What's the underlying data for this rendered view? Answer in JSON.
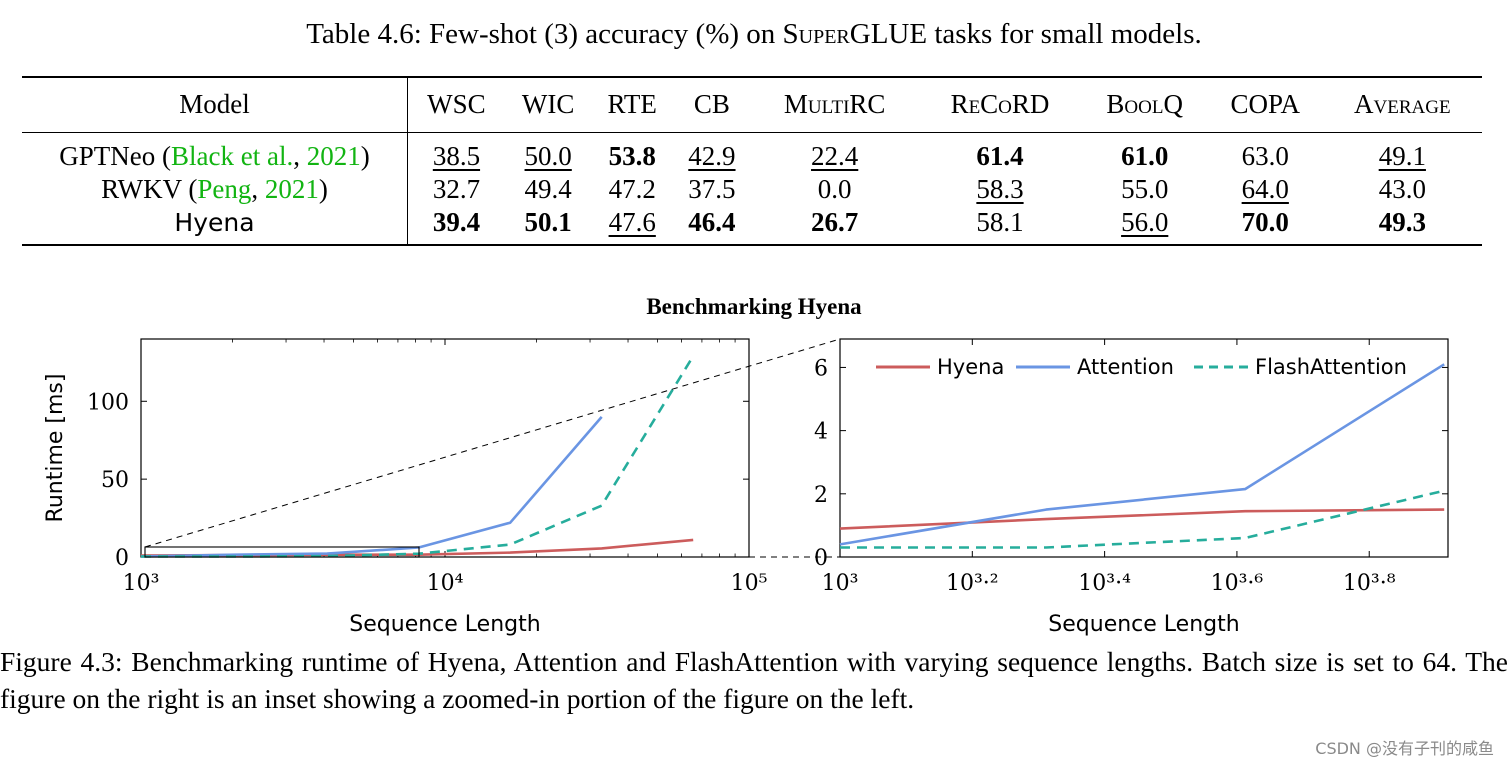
{
  "table": {
    "caption_prefix": "Table 4.6: Few-shot (3) accuracy (%) on ",
    "caption_sc": "SuperGLUE",
    "caption_suffix": " tasks for small models.",
    "headers": [
      "Model",
      "WSC",
      "WIC",
      "RTE",
      "CB",
      "MultiRC",
      "ReCoRD",
      "BoolQ",
      "COPA",
      "Average"
    ],
    "rows": [
      {
        "model": "GPTNeo",
        "cite_open": " (",
        "cite_author": "Black et al.",
        "cite_sep": ", ",
        "cite_year": "2021",
        "cite_close": ")",
        "cells": [
          {
            "v": "38.5",
            "s": "u"
          },
          {
            "v": "50.0",
            "s": "u"
          },
          {
            "v": "53.8",
            "s": "b"
          },
          {
            "v": "42.9",
            "s": "u"
          },
          {
            "v": "22.4",
            "s": "u"
          },
          {
            "v": "61.4",
            "s": "b"
          },
          {
            "v": "61.0",
            "s": "b"
          },
          {
            "v": "63.0",
            "s": ""
          },
          {
            "v": "49.1",
            "s": "u"
          }
        ]
      },
      {
        "model": "RWKV",
        "cite_open": " (",
        "cite_author": "Peng",
        "cite_sep": ", ",
        "cite_year": "2021",
        "cite_close": ")",
        "cells": [
          {
            "v": "32.7",
            "s": ""
          },
          {
            "v": "49.4",
            "s": ""
          },
          {
            "v": "47.2",
            "s": ""
          },
          {
            "v": "37.5",
            "s": ""
          },
          {
            "v": "0.0",
            "s": ""
          },
          {
            "v": "58.3",
            "s": "u"
          },
          {
            "v": "55.0",
            "s": ""
          },
          {
            "v": "64.0",
            "s": "u"
          },
          {
            "v": "43.0",
            "s": ""
          }
        ]
      },
      {
        "model": "Hyena",
        "cite_open": "",
        "cite_author": "",
        "cite_sep": "",
        "cite_year": "",
        "cite_close": "",
        "cells": [
          {
            "v": "39.4",
            "s": "b"
          },
          {
            "v": "50.1",
            "s": "b"
          },
          {
            "v": "47.6",
            "s": "u"
          },
          {
            "v": "46.4",
            "s": "b"
          },
          {
            "v": "26.7",
            "s": "b"
          },
          {
            "v": "58.1",
            "s": ""
          },
          {
            "v": "56.0",
            "s": "u"
          },
          {
            "v": "70.0",
            "s": "b"
          },
          {
            "v": "49.3",
            "s": "b"
          }
        ]
      }
    ]
  },
  "figure": {
    "title": "Benchmarking Hyena",
    "caption": "Figure 4.3: Benchmarking runtime of Hyena, Attention and FlashAttention with varying sequence lengths. Batch size is set to 64. The figure on the right is an inset showing a zoomed-in portion of the figure on the left."
  },
  "chart_data": [
    {
      "type": "line",
      "title": "Benchmarking Hyena",
      "xlabel": "Sequence Length",
      "ylabel": "Runtime [ms]",
      "xscale": "log10",
      "xlim": [
        1000,
        100000
      ],
      "ylim": [
        0,
        140
      ],
      "xticklabels": [
        "10³",
        "10⁴",
        "10⁵"
      ],
      "yticks": [
        0,
        50,
        100
      ],
      "series": [
        {
          "name": "Hyena",
          "color": "#cc5c5c",
          "dash": false,
          "x": [
            1000,
            2048,
            4096,
            8192,
            16384,
            32768,
            65536
          ],
          "y": [
            0.9,
            1.2,
            1.45,
            1.5,
            2.8,
            5.5,
            11.0
          ]
        },
        {
          "name": "Attention",
          "color": "#6a95e3",
          "dash": false,
          "x": [
            1000,
            2048,
            4096,
            8192,
            16384,
            32768
          ],
          "y": [
            0.4,
            1.5,
            2.2,
            6.1,
            22.0,
            90.0
          ]
        },
        {
          "name": "FlashAttention",
          "color": "#26ad9c",
          "dash": true,
          "x": [
            1000,
            2048,
            4096,
            8192,
            16384,
            32768,
            65536
          ],
          "y": [
            0.3,
            0.3,
            0.6,
            2.1,
            8.0,
            33.0,
            129.0
          ]
        }
      ]
    },
    {
      "type": "line",
      "title": "",
      "xlabel": "Sequence Length",
      "ylabel": "",
      "xscale": "log10",
      "xlim": [
        1000,
        8300
      ],
      "ylim": [
        0,
        6.9
      ],
      "xticklabels": [
        "10³",
        "10³·²",
        "10³·⁴",
        "10³·⁶",
        "10³·⁸"
      ],
      "yticks": [
        0,
        2,
        4,
        6
      ],
      "legend_position": "top",
      "series": [
        {
          "name": "Hyena",
          "color": "#cc5c5c",
          "dash": false,
          "x": [
            1000,
            2048,
            4096,
            8192
          ],
          "y": [
            0.9,
            1.2,
            1.45,
            1.5
          ]
        },
        {
          "name": "Attention",
          "color": "#6a95e3",
          "dash": false,
          "x": [
            1000,
            2048,
            4096,
            8192
          ],
          "y": [
            0.4,
            1.5,
            2.15,
            6.1
          ]
        },
        {
          "name": "FlashAttention",
          "color": "#26ad9c",
          "dash": true,
          "x": [
            1000,
            2048,
            4096,
            8192
          ],
          "y": [
            0.3,
            0.3,
            0.6,
            2.1
          ]
        }
      ]
    }
  ],
  "watermark": "CSDN @没有子刊的咸鱼"
}
